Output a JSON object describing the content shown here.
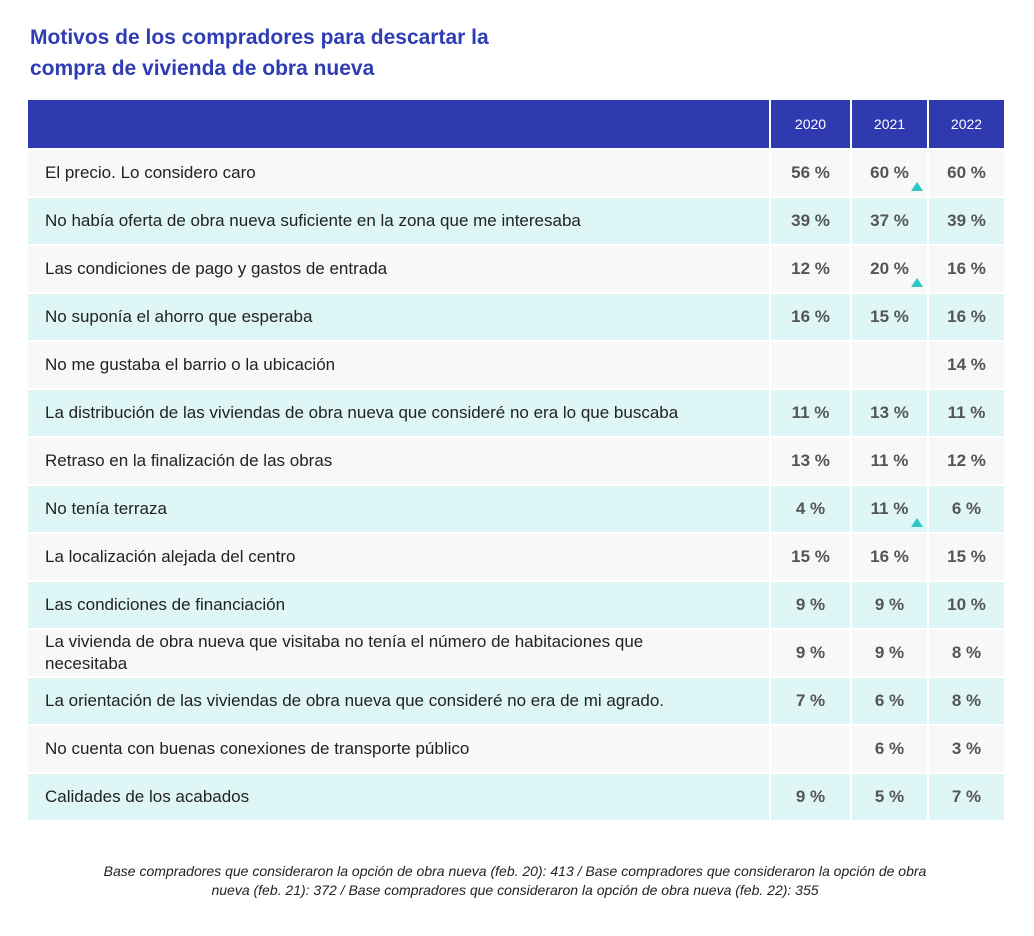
{
  "header": {
    "title": "Motivos de los compradores para descartar la compra de vivienda de obra nueva"
  },
  "table": {
    "columns": [
      "2020",
      "2021",
      "2022"
    ],
    "rows": [
      {
        "label": "El precio. Lo considero caro",
        "values": [
          "56 %",
          "60 %",
          "60 %"
        ]
      },
      {
        "label": "No había oferta de obra nueva suficiente en la zona que me interesaba",
        "values": [
          "39 %",
          "37 %",
          "39 %"
        ]
      },
      {
        "label": "Las condiciones de pago y gastos de entrada",
        "values": [
          "12 %",
          "20 %",
          "16 %"
        ]
      },
      {
        "label": "No suponía el ahorro que esperaba",
        "values": [
          "16 %",
          "15 %",
          "16 %"
        ]
      },
      {
        "label": "No me gustaba el barrio o la ubicación",
        "values": [
          null,
          null,
          "14 %"
        ]
      },
      {
        "label": "La distribución de las viviendas de obra nueva que consideré no era lo que buscaba",
        "values": [
          "11 %",
          "13 %",
          "11 %"
        ]
      },
      {
        "label": "Retraso en la finalización de las obras",
        "values": [
          "13 %",
          "11 %",
          "12 %"
        ]
      },
      {
        "label": "No tenía terraza",
        "values": [
          "4 %",
          "11 %",
          "6 %"
        ]
      },
      {
        "label": "La localización alejada del centro",
        "values": [
          "15 %",
          "16 %",
          "15 %"
        ]
      },
      {
        "label": "Las condiciones de financiación",
        "values": [
          "9 %",
          "9 %",
          "10 %"
        ]
      },
      {
        "label": "La vivienda de obra nueva que visitaba no tenía el número de habitaciones que necesitaba",
        "values": [
          "9 %",
          "9 %",
          "8 %"
        ]
      },
      {
        "label": "La orientación de las viviendas de obra nueva que consideré no era de mi agrado.",
        "values": [
          "7 %",
          "6 %",
          "8 %"
        ]
      },
      {
        "label": "No cuenta con buenas conexiones de transporte público",
        "values": [
          null,
          "6 %",
          "3 %"
        ]
      },
      {
        "label": "Calidades de los acabados",
        "values": [
          "9 %",
          "5 %",
          "7 %"
        ]
      }
    ]
  },
  "footnote": "Base compradores que consideraron la opción de obra nueva (feb. 20): 413 / Base compradores que consideraron la opción de obra nueva (feb. 21): 372 / Base compradores que consideraron la opción de obra nueva (feb. 22): 355"
}
